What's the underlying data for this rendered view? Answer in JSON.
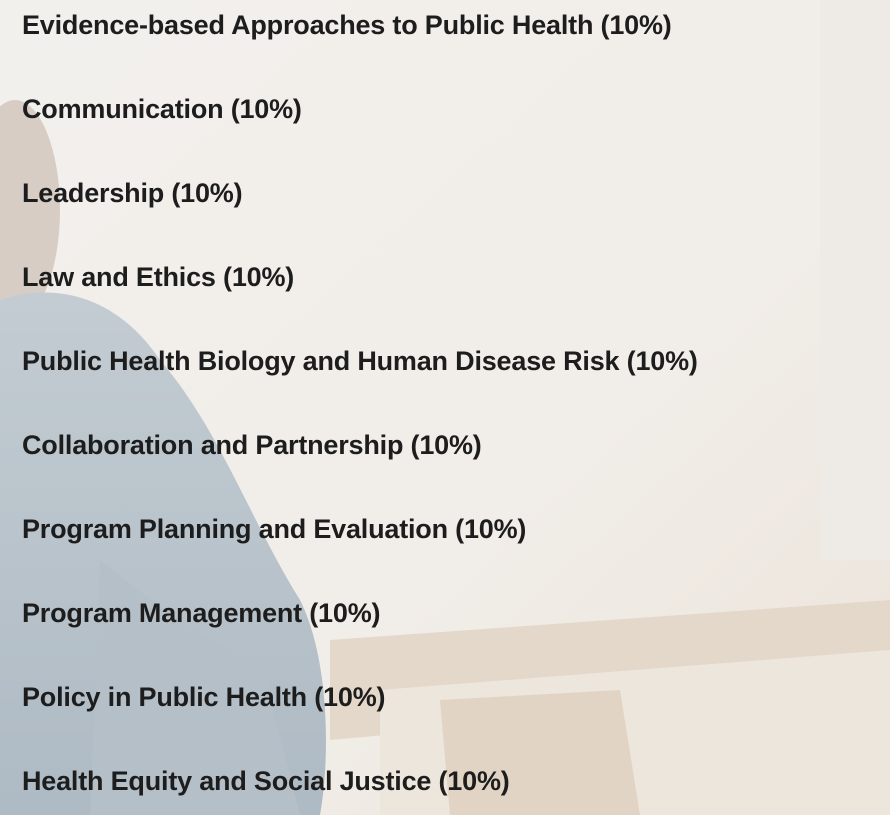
{
  "items": [
    "Evidence-based Approaches to Public Health (10%)",
    "Communication (10%)",
    "Leadership (10%)",
    "Law and Ethics (10%)",
    "Public Health Biology and Human Disease Risk (10%)",
    "Collaboration and Partnership (10%)",
    "Program Planning and Evaluation (10%)",
    "Program Management (10%)",
    "Policy in Public Health (10%)",
    "Health Equity and Social Justice (10%)"
  ]
}
